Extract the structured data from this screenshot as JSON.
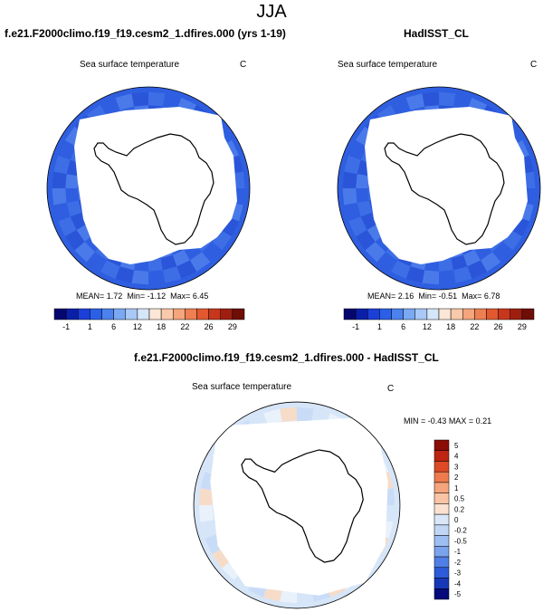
{
  "suptitle": "JJA",
  "panels": [
    {
      "title": "f.e21.F2000climo.f19_f19.cesm2_1.dfires.000 (yrs 1-19)",
      "variable": "Sea surface temperature",
      "units": "C",
      "stats": {
        "mean": "1.72",
        "min": "-1.12",
        "max": "6.45"
      }
    },
    {
      "title": "HadISST_CL",
      "variable": "Sea surface temperature",
      "units": "C",
      "stats": {
        "mean": "2.16",
        "min": "-0.51",
        "max": "6.78"
      }
    },
    {
      "title": "f.e21.F2000climo.f19_f19.cesm2_1.dfires.000 - HadISST_CL",
      "variable": "Sea surface temperature",
      "units": "C",
      "stats": {
        "min": "-0.43",
        "max": "0.21"
      }
    }
  ],
  "labels": {
    "mean": "MEAN=",
    "min": "Min=",
    "max": "Max=",
    "min_upper": "MIN =",
    "max_upper": "MAX ="
  },
  "colorbar_top": {
    "ticks": [
      "-1",
      "1",
      "6",
      "12",
      "18",
      "22",
      "26",
      "29"
    ],
    "colors": [
      "#06066f",
      "#0a1fa8",
      "#1b3fd8",
      "#2b5fe8",
      "#4b82ee",
      "#7aa8f2",
      "#a9c8f5",
      "#d5e6f8",
      "#fbe7d8",
      "#f8c9aa",
      "#f4a57c",
      "#ee7f52",
      "#e2582f",
      "#c8361c",
      "#9e1e10",
      "#6e0e06"
    ]
  },
  "colorbar_diff": {
    "ticks": [
      "5",
      "4",
      "3",
      "2",
      "1",
      "0.5",
      "0.2",
      "0",
      "-0.2",
      "-0.5",
      "-1",
      "-2",
      "-3",
      "-4",
      "-5"
    ],
    "colors": [
      "#8b0d06",
      "#bd2412",
      "#dd4a26",
      "#ee7a4e",
      "#f4a57c",
      "#f8c4a4",
      "#fbe2d0",
      "#d9e7f8",
      "#c0d6f5",
      "#9dbef1",
      "#7aa3ec",
      "#4f7ee6",
      "#2d5bd9",
      "#1638b8",
      "#060a7a"
    ]
  },
  "map": {
    "ocean_colors": {
      "panel1": [
        "#2f5fe0",
        "#3d6ee6",
        "#2a55d8",
        "#4a7aea"
      ],
      "panel2": [
        "#2f5fe0",
        "#3d6ee6",
        "#2a55d8",
        "#4a7aea"
      ],
      "diff": [
        "#d6e6f8",
        "#c9dcf7",
        "#f6dcc8",
        "#e9f1fb"
      ]
    }
  }
}
